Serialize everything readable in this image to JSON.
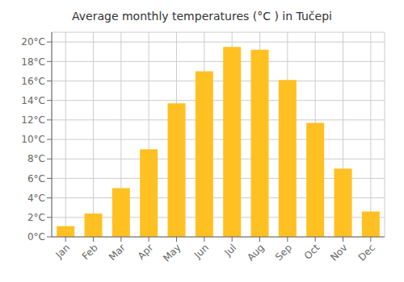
{
  "chart_data": {
    "type": "bar",
    "title": "Average monthly temperatures (°C ) in Tučepi",
    "categories": [
      "Jan",
      "Feb",
      "Mar",
      "Apr",
      "May",
      "Jun",
      "Jul",
      "Aug",
      "Sep",
      "Oct",
      "Nov",
      "Dec"
    ],
    "values": [
      1.1,
      2.4,
      5.0,
      9.0,
      13.7,
      17.0,
      19.5,
      19.2,
      16.1,
      11.7,
      7.0,
      2.6
    ],
    "color": "#FFC022",
    "ylim": [
      0,
      21
    ],
    "yticks": [
      {
        "value": 0,
        "label": "0°C"
      },
      {
        "value": 2,
        "label": "2°C"
      },
      {
        "value": 4,
        "label": "4°C"
      },
      {
        "value": 6,
        "label": "6°C"
      },
      {
        "value": 8,
        "label": "8°C"
      },
      {
        "value": 10,
        "label": "10°C"
      },
      {
        "value": 12,
        "label": "12°C"
      },
      {
        "value": 14,
        "label": "14°C"
      },
      {
        "value": 16,
        "label": "16°C"
      },
      {
        "value": 18,
        "label": "18°C"
      },
      {
        "value": 20,
        "label": "20°C"
      }
    ],
    "grid": true
  }
}
